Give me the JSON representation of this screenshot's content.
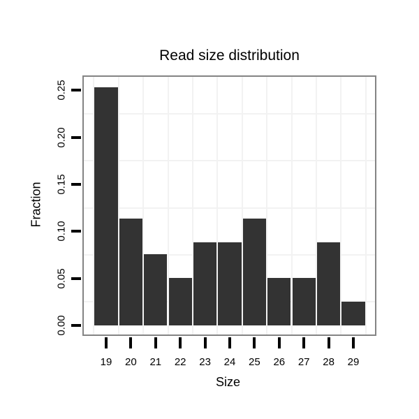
{
  "chart_data": {
    "type": "bar",
    "title": "Read size distribution",
    "xlabel": "Size",
    "ylabel": "Fraction",
    "categories": [
      "19",
      "20",
      "21",
      "22",
      "23",
      "24",
      "25",
      "26",
      "27",
      "28",
      "29"
    ],
    "values": [
      0.2532,
      0.1139,
      0.0759,
      0.0506,
      0.0886,
      0.0886,
      0.1139,
      0.0506,
      0.0506,
      0.0886,
      0.0253
    ],
    "ytick_labels": [
      "0.00",
      "0.05",
      "0.10",
      "0.15",
      "0.20",
      "0.25"
    ],
    "ytick_values": [
      0,
      0.05,
      0.1,
      0.15,
      0.2,
      0.25
    ],
    "hgrid_values": [
      0.025,
      0.075,
      0.125,
      0.175,
      0.225
    ],
    "ylim": [
      -0.01,
      0.264
    ],
    "grid": true,
    "legend": null,
    "colors": {
      "bar": "#333333",
      "panel_border": "#848484",
      "gridline": "#f2f2f2",
      "tick": "#000000",
      "text": "#000000",
      "background": "#ffffff"
    }
  }
}
